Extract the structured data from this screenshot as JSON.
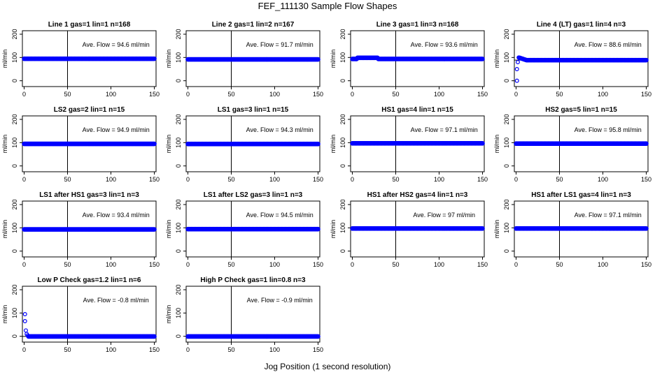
{
  "figure": {
    "title": "FEF_111130  Sample Flow Shapes",
    "x_caption": "Jog Position (1 second resolution)"
  },
  "colors": {
    "points": "#0000ff",
    "axis": "#000000",
    "avg_line": "#000000"
  },
  "chart_data": [
    {
      "type": "scatter",
      "title": "Line 1 gas=1 lin=1 n=168",
      "ylabel": "ml/min",
      "xlim": [
        -2,
        152
      ],
      "ylim": [
        -25,
        215
      ],
      "xticks": [
        0,
        50,
        100,
        150
      ],
      "yticks": [
        0,
        100,
        200
      ],
      "ytick_labels": [
        "0",
        "100",
        "200"
      ],
      "vline_x": 50,
      "avg": 94.6,
      "annotation": "Ave. Flow = 94.6  ml/min",
      "shape": "flat",
      "level": 94.6,
      "x": [
        0,
        150
      ]
    },
    {
      "type": "scatter",
      "title": "Line 2 gas=1 lin=2 n=167",
      "ylabel": "ml/min",
      "xlim": [
        -2,
        152
      ],
      "ylim": [
        -25,
        215
      ],
      "xticks": [
        0,
        50,
        100,
        150
      ],
      "yticks": [
        0,
        100,
        200
      ],
      "ytick_labels": [
        "0",
        "100",
        "200"
      ],
      "vline_x": 50,
      "avg": 91.7,
      "annotation": "Ave. Flow = 91.7  ml/min",
      "shape": "flat",
      "level": 91.7,
      "x": [
        0,
        150
      ]
    },
    {
      "type": "scatter",
      "title": "Line 3 gas=1 lin=3 n=168",
      "ylabel": "ml/min",
      "xlim": [
        -2,
        152
      ],
      "ylim": [
        -25,
        215
      ],
      "xticks": [
        0,
        50,
        100,
        150
      ],
      "yticks": [
        0,
        100,
        200
      ],
      "ytick_labels": [
        "0",
        "100",
        "200"
      ],
      "vline_x": 50,
      "avg": 93.6,
      "annotation": "Ave. Flow = 93.6  ml/min",
      "shape": "bump",
      "level": 93.6,
      "x": [
        0,
        150
      ]
    },
    {
      "type": "scatter",
      "title": "Line 4 (LT) gas=1 lin=4 n=3",
      "ylabel": "ml/min",
      "xlim": [
        -2,
        152
      ],
      "ylim": [
        -25,
        215
      ],
      "xticks": [
        0,
        50,
        100,
        150
      ],
      "yticks": [
        0,
        100,
        200
      ],
      "ytick_labels": [
        "0",
        "100",
        "200"
      ],
      "vline_x": 50,
      "avg": 88.6,
      "annotation": "Ave. Flow = 88.6  ml/min",
      "shape": "rise",
      "level": 88.6,
      "x": [
        0,
        150
      ],
      "extra_points": [
        [
          1,
          0
        ],
        [
          1,
          50
        ],
        [
          2,
          80
        ],
        [
          3,
          100
        ]
      ]
    },
    {
      "type": "scatter",
      "title": "LS2 gas=2 lin=1 n=15",
      "ylabel": "ml/min",
      "xlim": [
        -2,
        152
      ],
      "ylim": [
        -25,
        215
      ],
      "xticks": [
        0,
        50,
        100,
        150
      ],
      "yticks": [
        0,
        100,
        200
      ],
      "ytick_labels": [
        "0",
        "100",
        "200"
      ],
      "vline_x": 50,
      "avg": 94.9,
      "annotation": "Ave. Flow = 94.9  ml/min",
      "shape": "flat",
      "level": 94.9,
      "x": [
        0,
        150
      ]
    },
    {
      "type": "scatter",
      "title": "LS1 gas=3 lin=1 n=15",
      "ylabel": "ml/min",
      "xlim": [
        -2,
        152
      ],
      "ylim": [
        -25,
        215
      ],
      "xticks": [
        0,
        50,
        100,
        150
      ],
      "yticks": [
        0,
        100,
        200
      ],
      "ytick_labels": [
        "0",
        "100",
        "200"
      ],
      "vline_x": 50,
      "avg": 94.3,
      "annotation": "Ave. Flow = 94.3  ml/min",
      "shape": "flat",
      "level": 94.3,
      "x": [
        0,
        150
      ]
    },
    {
      "type": "scatter",
      "title": "HS1 gas=4 lin=1 n=15",
      "ylabel": "ml/min",
      "xlim": [
        -2,
        152
      ],
      "ylim": [
        -25,
        215
      ],
      "xticks": [
        0,
        50,
        100,
        150
      ],
      "yticks": [
        0,
        100,
        200
      ],
      "ytick_labels": [
        "0",
        "100",
        "200"
      ],
      "vline_x": 50,
      "avg": 97.1,
      "annotation": "Ave. Flow = 97.1  ml/min",
      "shape": "flat",
      "level": 97.1,
      "x": [
        0,
        150
      ]
    },
    {
      "type": "scatter",
      "title": "HS2 gas=5 lin=1 n=15",
      "ylabel": "ml/min",
      "xlim": [
        -2,
        152
      ],
      "ylim": [
        -25,
        215
      ],
      "xticks": [
        0,
        50,
        100,
        150
      ],
      "yticks": [
        0,
        100,
        200
      ],
      "ytick_labels": [
        "0",
        "100",
        "200"
      ],
      "vline_x": 50,
      "avg": 95.8,
      "annotation": "Ave. Flow = 95.8  ml/min",
      "shape": "flat",
      "level": 95.8,
      "x": [
        0,
        150
      ]
    },
    {
      "type": "scatter",
      "title": "LS1 after HS1 gas=3 lin=1 n=3",
      "ylabel": "ml/min",
      "xlim": [
        -2,
        152
      ],
      "ylim": [
        -25,
        215
      ],
      "xticks": [
        0,
        50,
        100,
        150
      ],
      "yticks": [
        0,
        100,
        200
      ],
      "ytick_labels": [
        "0",
        "100",
        "200"
      ],
      "vline_x": 50,
      "avg": 93.4,
      "annotation": "Ave. Flow = 93.4  ml/min",
      "shape": "flat",
      "level": 93.4,
      "x": [
        0,
        150
      ]
    },
    {
      "type": "scatter",
      "title": "LS1 after LS2 gas=3 lin=1 n=3",
      "ylabel": "ml/min",
      "xlim": [
        -2,
        152
      ],
      "ylim": [
        -25,
        215
      ],
      "xticks": [
        0,
        50,
        100,
        150
      ],
      "yticks": [
        0,
        100,
        200
      ],
      "ytick_labels": [
        "0",
        "100",
        "200"
      ],
      "vline_x": 50,
      "avg": 94.5,
      "annotation": "Ave. Flow = 94.5  ml/min",
      "shape": "flat",
      "level": 94.5,
      "x": [
        0,
        150
      ]
    },
    {
      "type": "scatter",
      "title": "HS1 after HS2 gas=4 lin=1 n=3",
      "ylabel": "ml/min",
      "xlim": [
        -2,
        152
      ],
      "ylim": [
        -25,
        215
      ],
      "xticks": [
        0,
        50,
        100,
        150
      ],
      "yticks": [
        0,
        100,
        200
      ],
      "ytick_labels": [
        "0",
        "100",
        "200"
      ],
      "vline_x": 50,
      "avg": 97,
      "annotation": "Ave. Flow = 97  ml/min",
      "shape": "flat",
      "level": 97,
      "x": [
        0,
        150
      ]
    },
    {
      "type": "scatter",
      "title": "HS1 after LS1 gas=4 lin=1 n=3",
      "ylabel": "ml/min",
      "xlim": [
        -2,
        152
      ],
      "ylim": [
        -25,
        215
      ],
      "xticks": [
        0,
        50,
        100,
        150
      ],
      "yticks": [
        0,
        100,
        200
      ],
      "ytick_labels": [
        "0",
        "100",
        "200"
      ],
      "vline_x": 50,
      "avg": 97.1,
      "annotation": "Ave. Flow = 97.1  ml/min",
      "shape": "flat",
      "level": 97.1,
      "x": [
        0,
        150
      ]
    },
    {
      "type": "scatter",
      "title": "Low P Check gas=1.2 lin=1 n=6",
      "ylabel": "ml/min",
      "xlim": [
        -2,
        152
      ],
      "ylim": [
        -25,
        215
      ],
      "xticks": [
        0,
        50,
        100,
        150
      ],
      "yticks": [
        0,
        100,
        200
      ],
      "ytick_labels": [
        "0",
        "100",
        "200"
      ],
      "vline_x": 50,
      "avg": -0.8,
      "annotation": "Ave. Flow = -0.8  ml/min",
      "shape": "decay",
      "level": -0.8,
      "x": [
        0,
        150
      ],
      "extra_points": [
        [
          1,
          95
        ],
        [
          1,
          65
        ],
        [
          2,
          25
        ],
        [
          3,
          10
        ],
        [
          4,
          4
        ]
      ]
    },
    {
      "type": "scatter",
      "title": "High P Check gas=1 lin=0.8 n=3",
      "ylabel": "ml/min",
      "xlim": [
        -2,
        152
      ],
      "ylim": [
        -25,
        215
      ],
      "xticks": [
        0,
        50,
        100,
        150
      ],
      "yticks": [
        0,
        100,
        200
      ],
      "ytick_labels": [
        "0",
        "100",
        "200"
      ],
      "vline_x": 50,
      "avg": -0.9,
      "annotation": "Ave. Flow = -0.9  ml/min",
      "shape": "flat",
      "level": -0.9,
      "x": [
        0,
        150
      ]
    }
  ]
}
